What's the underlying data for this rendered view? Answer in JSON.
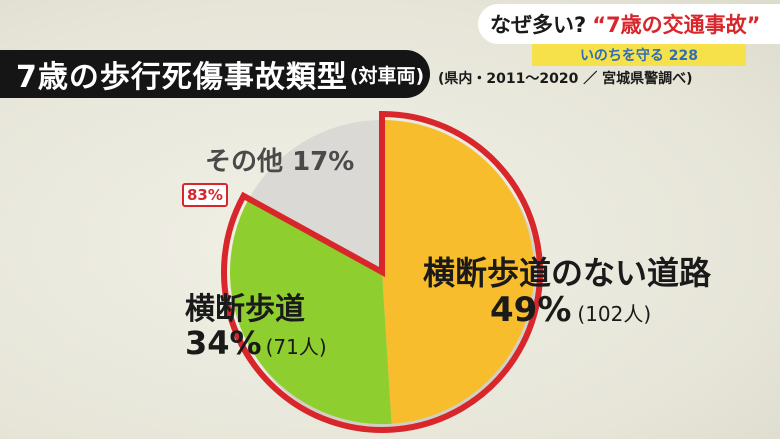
{
  "title": {
    "main": "7歳の歩行死傷事故類型",
    "sub": "(対車両)"
  },
  "source": "(県内・2011～2020 ／ 宮城県警調べ)",
  "badge": {
    "question": "なぜ多い?",
    "headline": "“7歳の交通事故”",
    "subline": "いのちを守る 228"
  },
  "chart_data": {
    "type": "pie",
    "slices": [
      {
        "label": "横断歩道のない道路",
        "percent": "49%",
        "count": "(102人)",
        "value": 49,
        "color": "#f7bd2c"
      },
      {
        "label": "横断歩道",
        "percent": "34%",
        "count": "(71人)",
        "value": 34,
        "color": "#8fce2f"
      },
      {
        "label": "その他",
        "percent": "17%",
        "value": 17,
        "color": "#dad9d5"
      }
    ],
    "highlight_total": "83%",
    "highlight_color": "#d8262b"
  }
}
